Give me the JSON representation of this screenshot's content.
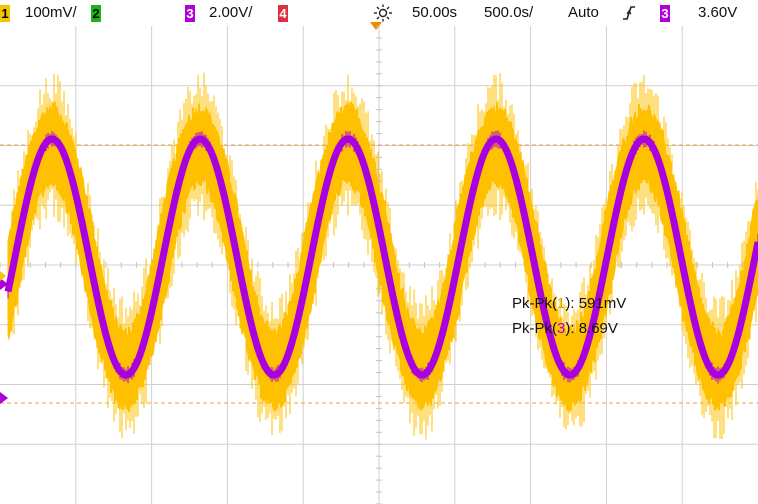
{
  "statusbar": {
    "ch1": {
      "number": "1",
      "scale": "100mV/",
      "color": "#f5c400"
    },
    "ch2": {
      "number": "2",
      "color": "#16b616"
    },
    "ch3": {
      "number": "3",
      "scale": "2.00V/",
      "color": "#b000d8"
    },
    "ch4": {
      "number": "4",
      "color": "#e03040"
    },
    "run_icon": "sun-run-icon",
    "delay": "50.00s",
    "timebase": "500.0s/",
    "trigger_mode": "Auto",
    "trigger_slope_icon": "rising-edge-icon",
    "trigger_source": "3",
    "trigger_level": "3.60V"
  },
  "measurements": {
    "m1": {
      "label": "Pk-Pk(",
      "channel": "1",
      "close": "):",
      "value": "591mV"
    },
    "m2": {
      "label": "Pk-Pk(",
      "channel": "3",
      "close": "):",
      "value": "8.69V"
    }
  },
  "waveforms": {
    "ch1_color": "#ffc000",
    "ch3_color": "#a800e0",
    "periods_on_screen": 5,
    "ch1_envelope_fraction": 0.9,
    "ch3_amplitude_fraction": 0.85
  }
}
